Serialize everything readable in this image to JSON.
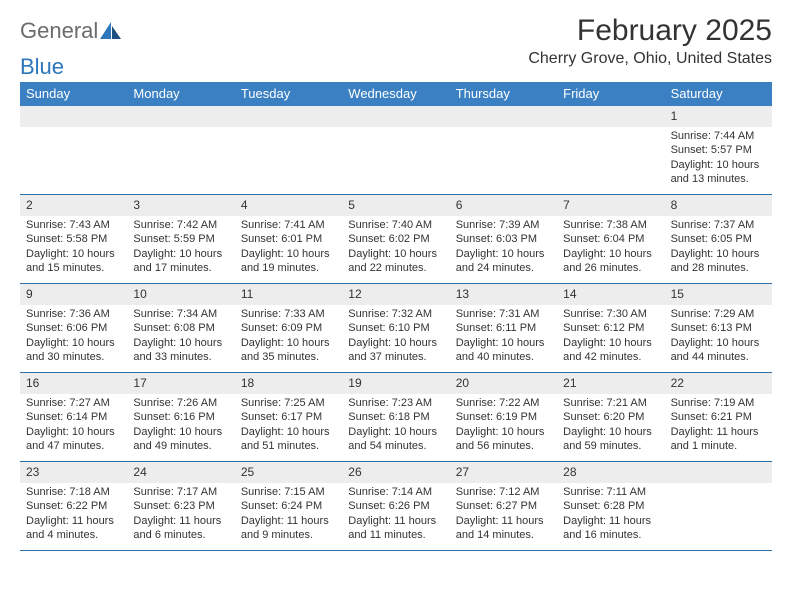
{
  "logo": {
    "word1": "General",
    "word2": "Blue"
  },
  "title": "February 2025",
  "subtitle": "Cherry Grove, Ohio, United States",
  "colors": {
    "header_bar": "#3a80c3",
    "header_text": "#ffffff",
    "daynum_bg": "#ededed",
    "rule": "#2d6fa8",
    "logo_gray": "#6b6b6b",
    "logo_blue": "#2d76bb",
    "text": "#333333",
    "page_bg": "#ffffff"
  },
  "day_headers": [
    "Sunday",
    "Monday",
    "Tuesday",
    "Wednesday",
    "Thursday",
    "Friday",
    "Saturday"
  ],
  "weeks": [
    [
      null,
      null,
      null,
      null,
      null,
      null,
      {
        "n": "1",
        "sunrise": "Sunrise: 7:44 AM",
        "sunset": "Sunset: 5:57 PM",
        "day1": "Daylight: 10 hours",
        "day2": "and 13 minutes."
      }
    ],
    [
      {
        "n": "2",
        "sunrise": "Sunrise: 7:43 AM",
        "sunset": "Sunset: 5:58 PM",
        "day1": "Daylight: 10 hours",
        "day2": "and 15 minutes."
      },
      {
        "n": "3",
        "sunrise": "Sunrise: 7:42 AM",
        "sunset": "Sunset: 5:59 PM",
        "day1": "Daylight: 10 hours",
        "day2": "and 17 minutes."
      },
      {
        "n": "4",
        "sunrise": "Sunrise: 7:41 AM",
        "sunset": "Sunset: 6:01 PM",
        "day1": "Daylight: 10 hours",
        "day2": "and 19 minutes."
      },
      {
        "n": "5",
        "sunrise": "Sunrise: 7:40 AM",
        "sunset": "Sunset: 6:02 PM",
        "day1": "Daylight: 10 hours",
        "day2": "and 22 minutes."
      },
      {
        "n": "6",
        "sunrise": "Sunrise: 7:39 AM",
        "sunset": "Sunset: 6:03 PM",
        "day1": "Daylight: 10 hours",
        "day2": "and 24 minutes."
      },
      {
        "n": "7",
        "sunrise": "Sunrise: 7:38 AM",
        "sunset": "Sunset: 6:04 PM",
        "day1": "Daylight: 10 hours",
        "day2": "and 26 minutes."
      },
      {
        "n": "8",
        "sunrise": "Sunrise: 7:37 AM",
        "sunset": "Sunset: 6:05 PM",
        "day1": "Daylight: 10 hours",
        "day2": "and 28 minutes."
      }
    ],
    [
      {
        "n": "9",
        "sunrise": "Sunrise: 7:36 AM",
        "sunset": "Sunset: 6:06 PM",
        "day1": "Daylight: 10 hours",
        "day2": "and 30 minutes."
      },
      {
        "n": "10",
        "sunrise": "Sunrise: 7:34 AM",
        "sunset": "Sunset: 6:08 PM",
        "day1": "Daylight: 10 hours",
        "day2": "and 33 minutes."
      },
      {
        "n": "11",
        "sunrise": "Sunrise: 7:33 AM",
        "sunset": "Sunset: 6:09 PM",
        "day1": "Daylight: 10 hours",
        "day2": "and 35 minutes."
      },
      {
        "n": "12",
        "sunrise": "Sunrise: 7:32 AM",
        "sunset": "Sunset: 6:10 PM",
        "day1": "Daylight: 10 hours",
        "day2": "and 37 minutes."
      },
      {
        "n": "13",
        "sunrise": "Sunrise: 7:31 AM",
        "sunset": "Sunset: 6:11 PM",
        "day1": "Daylight: 10 hours",
        "day2": "and 40 minutes."
      },
      {
        "n": "14",
        "sunrise": "Sunrise: 7:30 AM",
        "sunset": "Sunset: 6:12 PM",
        "day1": "Daylight: 10 hours",
        "day2": "and 42 minutes."
      },
      {
        "n": "15",
        "sunrise": "Sunrise: 7:29 AM",
        "sunset": "Sunset: 6:13 PM",
        "day1": "Daylight: 10 hours",
        "day2": "and 44 minutes."
      }
    ],
    [
      {
        "n": "16",
        "sunrise": "Sunrise: 7:27 AM",
        "sunset": "Sunset: 6:14 PM",
        "day1": "Daylight: 10 hours",
        "day2": "and 47 minutes."
      },
      {
        "n": "17",
        "sunrise": "Sunrise: 7:26 AM",
        "sunset": "Sunset: 6:16 PM",
        "day1": "Daylight: 10 hours",
        "day2": "and 49 minutes."
      },
      {
        "n": "18",
        "sunrise": "Sunrise: 7:25 AM",
        "sunset": "Sunset: 6:17 PM",
        "day1": "Daylight: 10 hours",
        "day2": "and 51 minutes."
      },
      {
        "n": "19",
        "sunrise": "Sunrise: 7:23 AM",
        "sunset": "Sunset: 6:18 PM",
        "day1": "Daylight: 10 hours",
        "day2": "and 54 minutes."
      },
      {
        "n": "20",
        "sunrise": "Sunrise: 7:22 AM",
        "sunset": "Sunset: 6:19 PM",
        "day1": "Daylight: 10 hours",
        "day2": "and 56 minutes."
      },
      {
        "n": "21",
        "sunrise": "Sunrise: 7:21 AM",
        "sunset": "Sunset: 6:20 PM",
        "day1": "Daylight: 10 hours",
        "day2": "and 59 minutes."
      },
      {
        "n": "22",
        "sunrise": "Sunrise: 7:19 AM",
        "sunset": "Sunset: 6:21 PM",
        "day1": "Daylight: 11 hours",
        "day2": "and 1 minute."
      }
    ],
    [
      {
        "n": "23",
        "sunrise": "Sunrise: 7:18 AM",
        "sunset": "Sunset: 6:22 PM",
        "day1": "Daylight: 11 hours",
        "day2": "and 4 minutes."
      },
      {
        "n": "24",
        "sunrise": "Sunrise: 7:17 AM",
        "sunset": "Sunset: 6:23 PM",
        "day1": "Daylight: 11 hours",
        "day2": "and 6 minutes."
      },
      {
        "n": "25",
        "sunrise": "Sunrise: 7:15 AM",
        "sunset": "Sunset: 6:24 PM",
        "day1": "Daylight: 11 hours",
        "day2": "and 9 minutes."
      },
      {
        "n": "26",
        "sunrise": "Sunrise: 7:14 AM",
        "sunset": "Sunset: 6:26 PM",
        "day1": "Daylight: 11 hours",
        "day2": "and 11 minutes."
      },
      {
        "n": "27",
        "sunrise": "Sunrise: 7:12 AM",
        "sunset": "Sunset: 6:27 PM",
        "day1": "Daylight: 11 hours",
        "day2": "and 14 minutes."
      },
      {
        "n": "28",
        "sunrise": "Sunrise: 7:11 AM",
        "sunset": "Sunset: 6:28 PM",
        "day1": "Daylight: 11 hours",
        "day2": "and 16 minutes."
      },
      null
    ]
  ]
}
